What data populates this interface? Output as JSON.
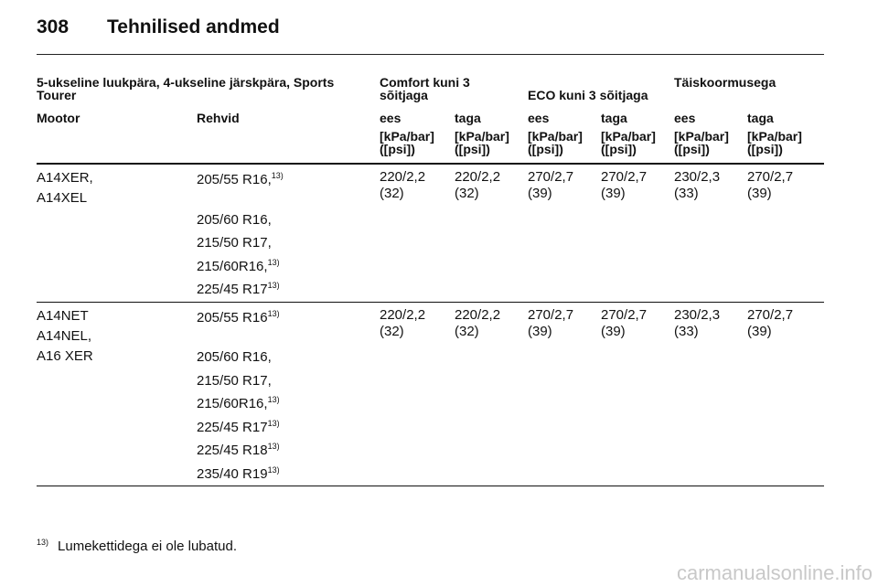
{
  "header": {
    "page_number": "308",
    "title": "Tehnilised andmed"
  },
  "table": {
    "group_headers": {
      "body_types": "5-ukseline luukpära, 4-ukseline järskpära, Sports Tourer",
      "comfort": "Comfort kuni 3 sõitjaga",
      "eco": "ECO kuni 3 sõitjaga",
      "full_load": "Täiskoormusega"
    },
    "columns": [
      "Mootor",
      "Rehvid",
      "ees",
      "taga",
      "ees",
      "taga",
      "ees",
      "taga"
    ],
    "units": [
      "[kPa/bar] ([psi])",
      "[kPa/bar] ([psi])",
      "[kPa/bar] ([psi])",
      "[kPa/bar] ([psi])",
      "[kPa/bar] ([psi])",
      "[kPa/bar] ([psi])"
    ],
    "rows": [
      {
        "engines": [
          "A14XER,",
          "A14XEL"
        ],
        "tires": [
          {
            "text": "205/55 R16,",
            "note": "13)"
          },
          {
            "text": "205/60 R16,"
          },
          {
            "text": "215/50 R17,"
          },
          {
            "text": "215/60R16,",
            "note": "13)"
          },
          {
            "text": "225/45 R17",
            "note": "13)"
          }
        ],
        "pressures": [
          "220/2,2\n(32)",
          "220/2,2\n(32)",
          "270/2,7\n(39)",
          "270/2,7\n(39)",
          "230/2,3\n(33)",
          "270/2,7\n(39)"
        ]
      },
      {
        "engines": [
          "A14NET",
          "A14NEL,",
          "A16 XER"
        ],
        "tires": [
          {
            "text": "205/55 R16",
            "note": "13)"
          },
          {
            "text": "205/60 R16,"
          },
          {
            "text": "215/50 R17,"
          },
          {
            "text": "215/60R16,",
            "note": "13)"
          },
          {
            "text": "225/45 R17",
            "note": "13)"
          },
          {
            "text": "225/45 R18",
            "note": "13)"
          },
          {
            "text": "235/40 R19",
            "note": "13)"
          }
        ],
        "pressures": [
          "220/2,2\n(32)",
          "220/2,2\n(32)",
          "270/2,7\n(39)",
          "270/2,7\n(39)",
          "230/2,3\n(33)",
          "270/2,7\n(39)"
        ]
      }
    ]
  },
  "footnote": {
    "marker": "13)",
    "text": "Lumekettidega ei ole lubatud."
  },
  "watermark": "carmanualsonline.info"
}
